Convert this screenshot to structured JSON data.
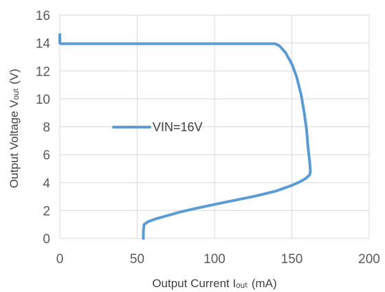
{
  "chart_data": {
    "type": "line",
    "title": "",
    "xlabel": "Output Current Iₒᵤₜ (mA)",
    "ylabel": "Output Voltage Vₒᵤₜ (V)",
    "xlim": [
      0,
      200
    ],
    "ylim": [
      0,
      16
    ],
    "x_ticks": [
      "0",
      "50",
      "100",
      "150",
      "200"
    ],
    "y_ticks": [
      "0",
      "2",
      "4",
      "6",
      "8",
      "10",
      "12",
      "14",
      "16"
    ],
    "grid": "vertical-and-horizontal",
    "legend_placement": "middle-left",
    "series": [
      {
        "name": "VIN=16V",
        "color": "#5B9BD5",
        "x": [
          0,
          0,
          0.5,
          20,
          60,
          100,
          139,
          142,
          146,
          150,
          153,
          156,
          158,
          159.5,
          160.5,
          161.5,
          162,
          161.5,
          159,
          155,
          150,
          140,
          125,
          105,
          90,
          78,
          70,
          62,
          57,
          54.5,
          54,
          54
        ],
        "y": [
          14.6,
          14.0,
          13.95,
          13.95,
          13.95,
          13.95,
          13.95,
          13.8,
          13.3,
          12.5,
          11.6,
          10.3,
          9.0,
          7.8,
          6.5,
          5.5,
          4.8,
          4.55,
          4.3,
          4.05,
          3.8,
          3.4,
          3.0,
          2.55,
          2.2,
          1.9,
          1.65,
          1.4,
          1.2,
          1.0,
          0.5,
          0.0
        ]
      }
    ]
  }
}
